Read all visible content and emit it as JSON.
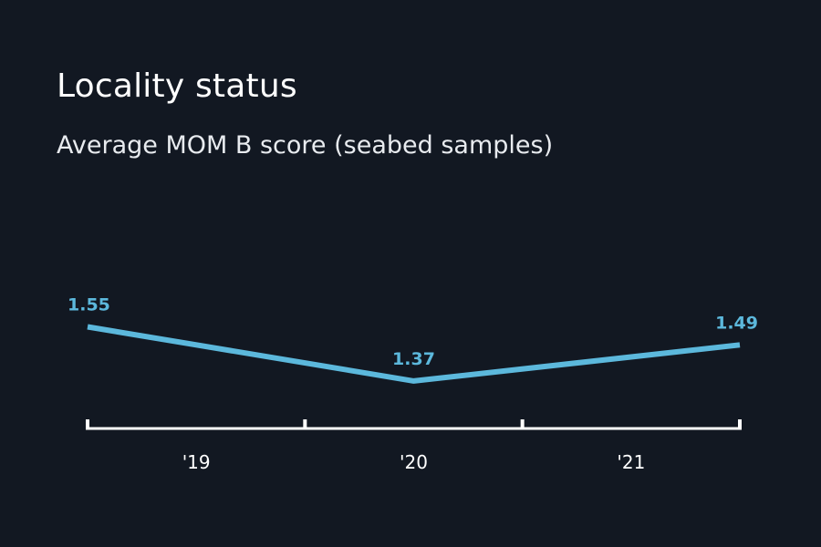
{
  "header": {
    "title": "Locality status",
    "subtitle": "Average MOM B score (seabed samples)"
  },
  "colors": {
    "background": "#121822",
    "line": "#5cb8dc",
    "axis": "#ffffff"
  },
  "chart_data": {
    "type": "line",
    "title": "Locality status",
    "subtitle": "Average MOM B score (seabed samples)",
    "categories": [
      "'19",
      "'20",
      "'21"
    ],
    "series": [
      {
        "values": [
          1.55,
          1.37,
          1.49
        ],
        "labels": [
          "1.55",
          "1.37",
          "1.49"
        ]
      }
    ],
    "xlabel": "",
    "ylabel": "",
    "ylim": [
      1.0,
      2.0
    ],
    "grid": false,
    "legend": "none"
  }
}
